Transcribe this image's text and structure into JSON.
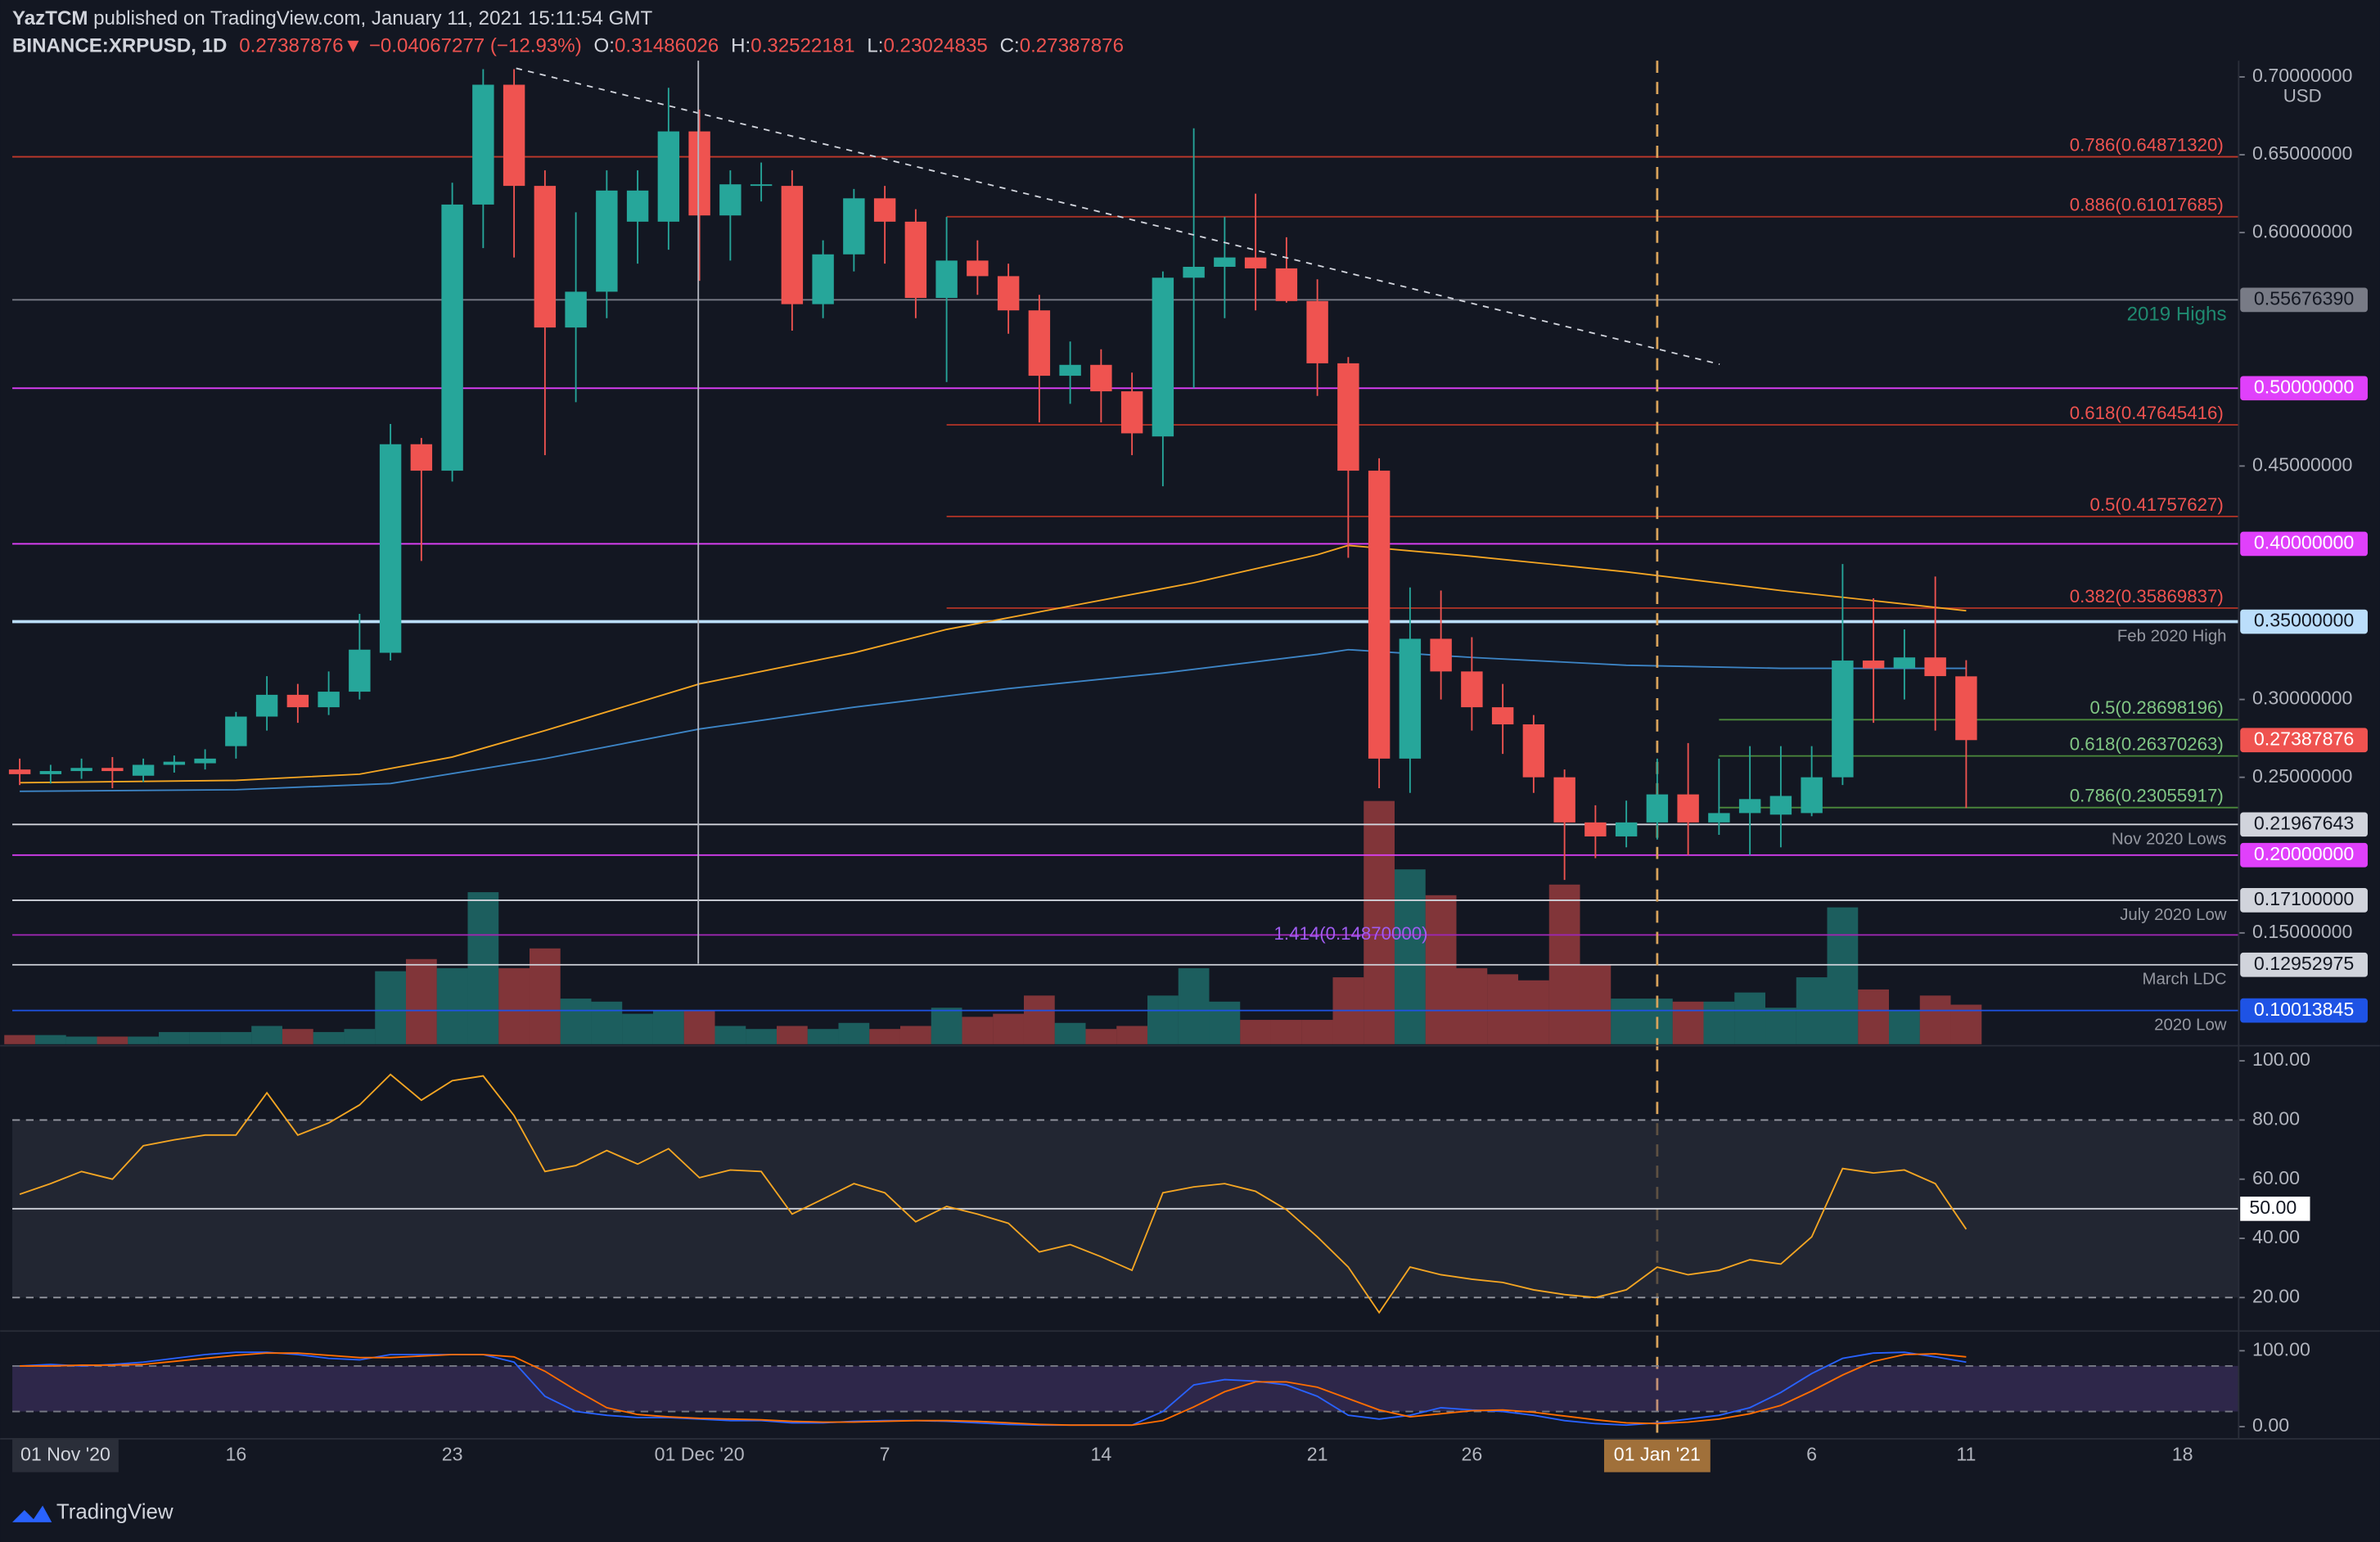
{
  "header": {
    "publisher": "YazTCM",
    "published": " published on TradingView.com, January 11, 2021 15:11:54 GMT",
    "symbol": "BINANCE:XRPUSD, 1D",
    "last": "0.27387876",
    "direction": "▼",
    "change": "−0.04067277 (−12.93%)",
    "ohlc": [
      {
        "key": "O:",
        "value": "0.31486026"
      },
      {
        "key": "H:",
        "value": "0.32522181"
      },
      {
        "key": "L:",
        "value": "0.23024835"
      },
      {
        "key": "C:",
        "value": "0.27387876"
      }
    ]
  },
  "brand": "TradingView",
  "chart_data": {
    "type": "candlestick",
    "currency": "USD",
    "up_color": "#26a69a",
    "down_color": "#ef5350",
    "x": [
      8,
      9,
      10,
      11,
      12,
      13,
      14,
      15,
      16,
      17,
      18,
      19,
      20,
      21,
      22,
      23,
      24,
      25,
      26,
      27,
      28,
      29,
      30,
      31,
      32,
      33,
      34,
      35,
      36,
      37,
      38,
      39,
      40,
      41,
      42,
      43,
      44,
      45,
      46,
      47,
      48,
      49,
      50,
      51,
      52,
      53,
      54,
      55,
      56,
      57,
      58,
      59,
      60,
      61,
      62,
      63,
      64,
      65,
      66,
      67,
      68,
      69,
      70,
      71
    ],
    "open": [
      0.255,
      0.252,
      0.254,
      0.256,
      0.251,
      0.258,
      0.259,
      0.27,
      0.289,
      0.303,
      0.295,
      0.305,
      0.33,
      0.464,
      0.447,
      0.618,
      0.695,
      0.63,
      0.539,
      0.562,
      0.607,
      0.607,
      0.665,
      0.611,
      0.63,
      0.63,
      0.554,
      0.586,
      0.622,
      0.607,
      0.558,
      0.582,
      0.572,
      0.55,
      0.508,
      0.515,
      0.498,
      0.469,
      0.571,
      0.578,
      0.584,
      0.577,
      0.556,
      0.516,
      0.447,
      0.262,
      0.339,
      0.318,
      0.295,
      0.284,
      0.25,
      0.221,
      0.212,
      0.221,
      0.239,
      0.221,
      0.227,
      0.226,
      0.227,
      0.25,
      0.325,
      0.32,
      0.327,
      0.31486026
    ],
    "high": [
      0.262,
      0.258,
      0.262,
      0.263,
      0.262,
      0.264,
      0.268,
      0.292,
      0.315,
      0.31,
      0.318,
      0.355,
      0.477,
      0.468,
      0.632,
      0.705,
      0.705,
      0.64,
      0.613,
      0.64,
      0.64,
      0.693,
      0.679,
      0.64,
      0.645,
      0.64,
      0.595,
      0.628,
      0.63,
      0.615,
      0.61,
      0.595,
      0.58,
      0.56,
      0.53,
      0.525,
      0.51,
      0.575,
      0.667,
      0.61,
      0.625,
      0.597,
      0.57,
      0.52,
      0.455,
      0.372,
      0.37,
      0.34,
      0.31,
      0.29,
      0.255,
      0.232,
      0.235,
      0.262,
      0.272,
      0.262,
      0.27,
      0.27,
      0.27,
      0.387,
      0.365,
      0.345,
      0.379,
      0.32522181
    ],
    "low": [
      0.245,
      0.246,
      0.249,
      0.243,
      0.247,
      0.253,
      0.255,
      0.262,
      0.28,
      0.285,
      0.29,
      0.3,
      0.325,
      0.389,
      0.44,
      0.59,
      0.584,
      0.457,
      0.491,
      0.545,
      0.58,
      0.589,
      0.569,
      0.582,
      0.62,
      0.537,
      0.545,
      0.575,
      0.58,
      0.545,
      0.504,
      0.56,
      0.535,
      0.478,
      0.49,
      0.478,
      0.457,
      0.437,
      0.5,
      0.545,
      0.55,
      0.555,
      0.495,
      0.391,
      0.243,
      0.24,
      0.3,
      0.28,
      0.265,
      0.24,
      0.184,
      0.198,
      0.205,
      0.21,
      0.2,
      0.213,
      0.2,
      0.205,
      0.225,
      0.245,
      0.285,
      0.3,
      0.28,
      0.23024835
    ],
    "close": [
      0.252,
      0.254,
      0.256,
      0.254,
      0.258,
      0.26,
      0.262,
      0.289,
      0.303,
      0.295,
      0.305,
      0.332,
      0.464,
      0.447,
      0.618,
      0.695,
      0.63,
      0.539,
      0.562,
      0.627,
      0.627,
      0.665,
      0.611,
      0.631,
      0.631,
      0.554,
      0.586,
      0.622,
      0.607,
      0.558,
      0.582,
      0.572,
      0.55,
      0.508,
      0.515,
      0.498,
      0.471,
      0.571,
      0.578,
      0.584,
      0.577,
      0.556,
      0.516,
      0.447,
      0.262,
      0.339,
      0.318,
      0.295,
      0.284,
      0.25,
      0.221,
      0.212,
      0.221,
      0.239,
      0.221,
      0.227,
      0.236,
      0.238,
      0.25,
      0.325,
      0.32,
      0.327,
      0.315,
      0.27387876
    ],
    "last_label": "0.27387876",
    "volume": [
      6,
      6,
      5,
      5,
      5,
      8,
      8,
      8,
      12,
      10,
      8,
      10,
      48,
      56,
      50,
      100,
      50,
      63,
      30,
      28,
      20,
      22,
      22,
      12,
      10,
      12,
      10,
      14,
      10,
      12,
      24,
      18,
      20,
      32,
      14,
      10,
      12,
      32,
      50,
      28,
      16,
      16,
      16,
      44,
      160,
      115,
      98,
      50,
      46,
      42,
      105,
      52,
      30,
      30,
      28,
      28,
      34,
      24,
      44,
      90,
      36,
      22,
      32,
      26
    ],
    "volume_ylim": [
      0,
      640
    ],
    "xlim": [
      7.76,
      79.82
    ],
    "ylim": [
      0.0785,
      0.7036
    ],
    "xticks": [
      {
        "value": 15,
        "label": "16"
      },
      {
        "value": 22,
        "label": "23"
      },
      {
        "value": 30,
        "label": "01 Dec '20"
      },
      {
        "value": 36,
        "label": "7"
      },
      {
        "value": 43,
        "label": "14"
      },
      {
        "value": 50,
        "label": "21"
      },
      {
        "value": 55,
        "label": "26"
      },
      {
        "value": 66,
        "label": "6"
      },
      {
        "value": 71,
        "label": "11"
      },
      {
        "value": 78,
        "label": "18"
      }
    ],
    "x_start_label": "01 Nov '20",
    "x_marker": {
      "value": 61,
      "label": "01 Jan '21",
      "color": "#d9a35b"
    },
    "yticks": [
      {
        "value": 0.7,
        "label": "0.70000000"
      },
      {
        "value": 0.65,
        "label": "0.65000000"
      },
      {
        "value": 0.6,
        "label": "0.60000000"
      },
      {
        "value": 0.45,
        "label": "0.45000000"
      },
      {
        "value": 0.3,
        "label": "0.30000000"
      },
      {
        "value": 0.25,
        "label": "0.25000000"
      },
      {
        "value": 0.15,
        "label": "0.15000000"
      }
    ],
    "moving_averages": [
      {
        "color": "#f5a623",
        "x": [
          8,
          15,
          19,
          22,
          25,
          30,
          35,
          38,
          42,
          46,
          50,
          51,
          55,
          60,
          65,
          71
        ],
        "values": [
          0.2465,
          0.248,
          0.252,
          0.263,
          0.28,
          0.31,
          0.33,
          0.345,
          0.36,
          0.375,
          0.393,
          0.399,
          0.392,
          0.382,
          0.37,
          0.357
        ]
      },
      {
        "color": "#3d85c6",
        "x": [
          8,
          15,
          20,
          25,
          30,
          35,
          40,
          45,
          50,
          51,
          55,
          60,
          65,
          71
        ],
        "values": [
          0.241,
          0.242,
          0.246,
          0.262,
          0.281,
          0.295,
          0.307,
          0.317,
          0.329,
          0.332,
          0.327,
          0.322,
          0.32,
          0.32
        ]
      }
    ],
    "levels": [
      {
        "value": 0.6487132,
        "label": "0.786(0.64871320)",
        "style": "fib",
        "color": "#c0392b",
        "text_color": "#ef5350"
      },
      {
        "value": 0.61017685,
        "label": "0.886(0.61017685)",
        "style": "fib",
        "color": "#a93226",
        "text_color": "#ef5350",
        "x_from": 38
      },
      {
        "value": 0.5567639,
        "label": "0.55676390",
        "style": "box",
        "color": "#787b86",
        "text_color": "#131722",
        "note": "2019 Highs",
        "note_color": "#1f8a70"
      },
      {
        "value": 0.5,
        "label": "0.50000000",
        "style": "box",
        "color": "#e040fb",
        "text_color": "#ffffff"
      },
      {
        "value": 0.47645416,
        "label": "0.618(0.47645416)",
        "style": "fib",
        "color": "#a93226",
        "text_color": "#ef5350",
        "x_from": 38
      },
      {
        "value": 0.41757627,
        "label": "0.5(0.41757627)",
        "style": "fib",
        "color": "#a93226",
        "text_color": "#ef5350",
        "x_from": 38
      },
      {
        "value": 0.4,
        "label": "0.40000000",
        "style": "box",
        "color": "#e040fb",
        "text_color": "#ffffff"
      },
      {
        "value": 0.35869837,
        "label": "0.382(0.35869837)",
        "style": "fib",
        "color": "#a93226",
        "text_color": "#ef5350",
        "x_from": 38
      },
      {
        "value": 0.35,
        "label": "0.35000000",
        "style": "box",
        "color": "#bbdefb",
        "text_color": "#131722",
        "note": "Feb 2020 High",
        "note_color": "#9598a1"
      },
      {
        "value": 0.28698196,
        "label": "0.5(0.28698196)",
        "style": "fib",
        "color": "#4c8a3c",
        "text_color": "#81c784",
        "x_from": 63
      },
      {
        "value": 0.26370263,
        "label": "0.618(0.26370263)",
        "style": "fib",
        "color": "#4c8a3c",
        "text_color": "#81c784",
        "x_from": 63
      },
      {
        "value": 0.23055917,
        "label": "0.786(0.23055917)",
        "style": "fib",
        "color": "#4c8a3c",
        "text_color": "#81c784",
        "x_from": 63
      },
      {
        "value": 0.21967643,
        "label": "0.21967643",
        "style": "box",
        "color": "#d1d4dc",
        "text_color": "#131722",
        "note": "Nov 2020 Lows",
        "note_color": "#9598a1"
      },
      {
        "value": 0.2,
        "label": "0.20000000",
        "style": "box",
        "color": "#e040fb",
        "text_color": "#ffffff"
      },
      {
        "value": 0.171,
        "label": "0.17100000",
        "style": "box",
        "color": "#d1d4dc",
        "text_color": "#131722",
        "note": "July 2020 Low",
        "note_color": "#9598a1"
      },
      {
        "value": 0.1487,
        "label": "1.414(0.14870000)",
        "style": "fib-center",
        "color": "#9c27b0",
        "text_color": "#a05cf0"
      },
      {
        "value": 0.12952975,
        "label": "0.12952975",
        "style": "box",
        "color": "#d1d4dc",
        "text_color": "#131722",
        "note": "March LDC",
        "note_color": "#9598a1"
      },
      {
        "value": 0.10013845,
        "label": "0.10013845",
        "style": "box",
        "color": "#1e53e5",
        "text_color": "#ffffff",
        "note": "2020 Low",
        "note_color": "#9598a1"
      }
    ],
    "rsi": {
      "color": "#f5a623",
      "ylim": [
        9.7,
        104.6
      ],
      "band": [
        20,
        80
      ],
      "midline": {
        "value": 50,
        "label": "50.00"
      },
      "yticks": [
        {
          "value": 100,
          "label": "100.00"
        },
        {
          "value": 80,
          "label": "80.00"
        },
        {
          "value": 60,
          "label": "60.00"
        },
        {
          "value": 40,
          "label": "40.00"
        },
        {
          "value": 20,
          "label": "20.00"
        }
      ],
      "values": [
        54.9,
        58.5,
        62.6,
        60.0,
        71.3,
        73.3,
        74.9,
        74.9,
        89.2,
        74.9,
        79.0,
        85.1,
        95.4,
        86.7,
        93.3,
        94.9,
        81.5,
        62.6,
        64.6,
        69.7,
        65.1,
        70.3,
        60.5,
        63.1,
        62.6,
        48.2,
        53.3,
        58.5,
        55.4,
        45.6,
        50.8,
        48.2,
        45.1,
        35.4,
        37.9,
        33.8,
        29.2,
        55.4,
        57.4,
        58.5,
        55.9,
        49.7,
        40.5,
        30.3,
        14.9,
        30.3,
        27.7,
        26.2,
        25.1,
        22.6,
        21.0,
        20.0,
        22.6,
        30.3,
        27.7,
        29.2,
        32.8,
        31.3,
        40.5,
        63.6,
        62.1,
        63.1,
        58.5,
        43.1
      ]
    },
    "stoch_rsi": {
      "ylim": [
        -16,
        120
      ],
      "band": [
        20,
        80
      ],
      "yticks": [
        {
          "value": 100,
          "label": "100.00"
        },
        {
          "value": 0,
          "label": "0.00"
        }
      ],
      "series": [
        {
          "color": "#2962ff",
          "values": [
            80,
            82,
            80,
            82,
            85,
            90,
            95,
            98,
            98,
            95,
            90,
            88,
            95,
            95,
            95,
            95,
            85,
            40,
            20,
            15,
            12,
            12,
            10,
            8,
            8,
            5,
            5,
            7,
            8,
            8,
            7,
            5,
            3,
            2,
            2,
            2,
            2,
            20,
            55,
            62,
            60,
            55,
            40,
            15,
            10,
            15,
            25,
            22,
            20,
            15,
            8,
            4,
            2,
            5,
            10,
            15,
            25,
            45,
            70,
            90,
            97,
            98,
            92,
            85
          ]
        },
        {
          "color": "#ff6d00",
          "values": [
            80,
            80,
            81,
            81,
            82,
            86,
            90,
            94,
            97,
            97,
            94,
            91,
            91,
            93,
            95,
            95,
            92,
            73,
            48,
            25,
            16,
            13,
            11,
            10,
            9,
            7,
            6,
            6,
            7,
            8,
            8,
            7,
            5,
            3,
            2,
            2,
            2,
            8,
            26,
            46,
            59,
            59,
            52,
            37,
            22,
            13,
            17,
            21,
            22,
            19,
            14,
            9,
            5,
            4,
            6,
            10,
            17,
            28,
            47,
            68,
            86,
            95,
            96,
            92
          ]
        }
      ]
    }
  }
}
